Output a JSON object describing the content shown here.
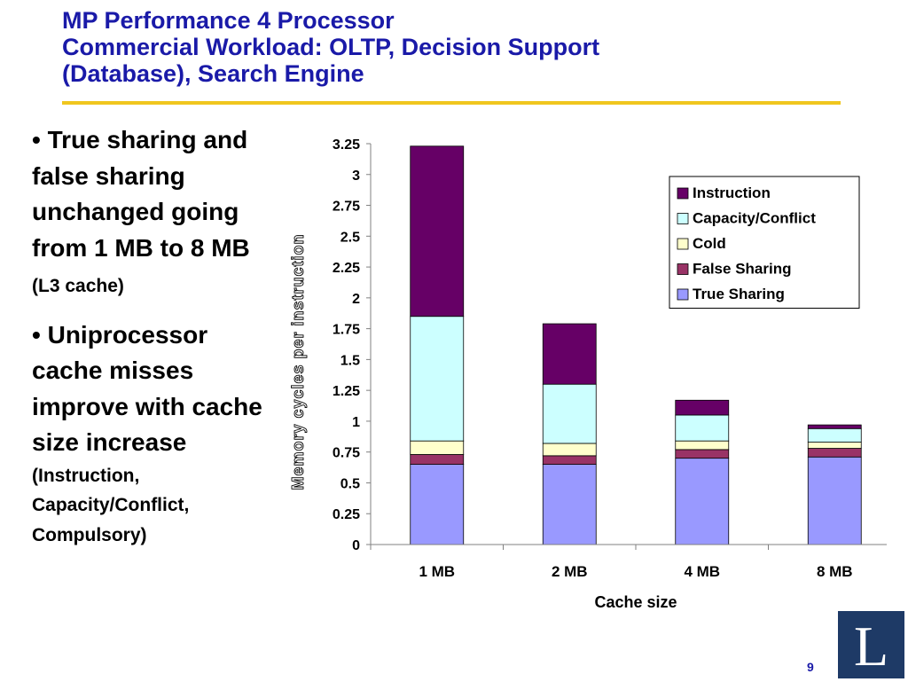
{
  "slide": {
    "title_line1": "MP Performance 4 Processor",
    "title_line2": "Commercial Workload: OLTP, Decision Support",
    "title_line3": "(Database), Search Engine",
    "bullet1": {
      "marker": "•",
      "text": "True sharing and false sharing unchanged going from 1 MB to 8 MB",
      "note": "(L3 cache)"
    },
    "bullet2": {
      "marker": "•",
      "text": "Uniprocessor cache misses improve with cache size increase",
      "note": "(Instruction, Capacity/Conflict, Compulsory)"
    },
    "page_number": "9",
    "logo_letter": "L"
  },
  "colors": {
    "title": "#1a1aa8",
    "title_rule": "#f0c61e",
    "logo_bg": "#1e3a66"
  },
  "chart_data": {
    "type": "bar",
    "stacked": true,
    "categories": [
      "1 MB",
      "2 MB",
      "4 MB",
      "8 MB"
    ],
    "series": [
      {
        "name": "True Sharing",
        "color": "#9999ff",
        "values": [
          0.65,
          0.65,
          0.7,
          0.71
        ]
      },
      {
        "name": "False Sharing",
        "color": "#993366",
        "values": [
          0.08,
          0.07,
          0.07,
          0.07
        ]
      },
      {
        "name": "Cold",
        "color": "#ffffcc",
        "values": [
          0.11,
          0.1,
          0.07,
          0.05
        ]
      },
      {
        "name": "Capacity/Conflict",
        "color": "#ccffff",
        "values": [
          1.01,
          0.48,
          0.21,
          0.11
        ]
      },
      {
        "name": "Instruction",
        "color": "#660066",
        "values": [
          1.38,
          0.49,
          0.12,
          0.03
        ]
      }
    ],
    "legend_order": [
      "Instruction",
      "Capacity/Conflict",
      "Cold",
      "False Sharing",
      "True Sharing"
    ],
    "legend_position": "top-right",
    "xlabel": "Cache size",
    "ylabel": "Memory cycles per instruction",
    "ylim": [
      0,
      3.25
    ],
    "yticks": [
      0,
      0.25,
      0.5,
      0.75,
      1,
      1.25,
      1.5,
      1.75,
      2,
      2.25,
      2.5,
      2.75,
      3,
      3.25
    ],
    "grid": false
  }
}
